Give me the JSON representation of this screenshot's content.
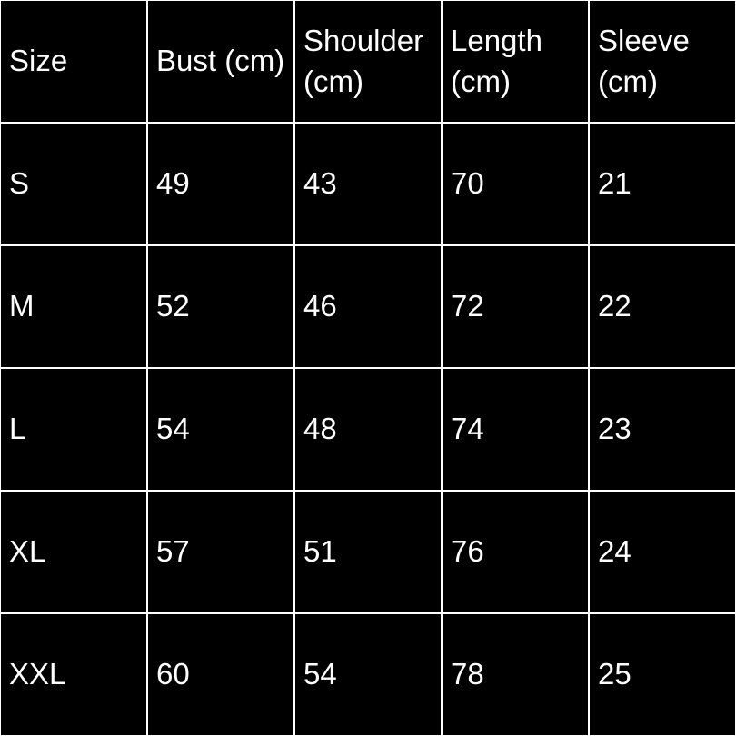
{
  "colors": {
    "background": "#000000",
    "text": "#ffffff",
    "border": "#ffffff"
  },
  "chart_data": {
    "type": "table",
    "columns": [
      "Size",
      "Bust (cm)",
      "Shoulder (cm)",
      "Length (cm)",
      "Sleeve (cm)"
    ],
    "column_keys": [
      "size",
      "bust",
      "shoulder",
      "length",
      "sleeve"
    ],
    "rows": [
      [
        "S",
        "49",
        "43",
        "70",
        "21"
      ],
      [
        "M",
        "52",
        "46",
        "72",
        "22"
      ],
      [
        "L",
        "54",
        "48",
        "74",
        "23"
      ],
      [
        "XL",
        "57",
        "51",
        "76",
        "24"
      ],
      [
        "XXL",
        "60",
        "54",
        "78",
        "25"
      ]
    ]
  }
}
